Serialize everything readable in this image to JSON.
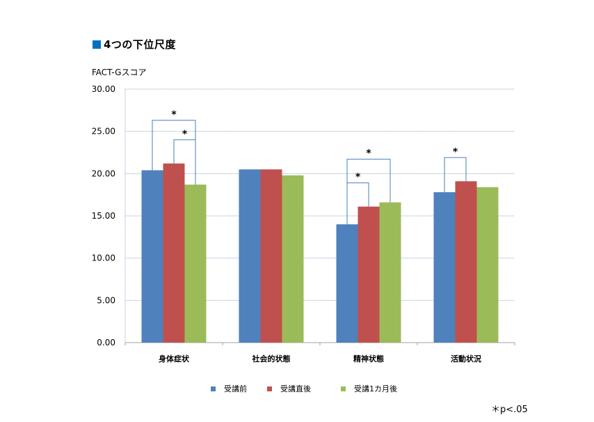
{
  "chart_data": {
    "type": "bar",
    "title": "4つの下位尺度",
    "ylabel": "FACT-Gスコア",
    "xlabel": "",
    "ylim": [
      0,
      30
    ],
    "y_ticks": [
      "0.00",
      "5.00",
      "10.00",
      "15.00",
      "20.00",
      "25.00",
      "30.00"
    ],
    "y_tick_values": [
      0,
      5,
      10,
      15,
      20,
      25,
      30
    ],
    "categories": [
      "身体症状",
      "社会的状態",
      "精神状態",
      "活動状況"
    ],
    "series": [
      {
        "name": "受講前",
        "color": "#4F81BD",
        "values": [
          20.4,
          20.5,
          14.0,
          17.8
        ]
      },
      {
        "name": "受講直後",
        "color": "#C0504D",
        "values": [
          21.2,
          20.5,
          16.1,
          19.1
        ]
      },
      {
        "name": "受講1カ月後",
        "color": "#9BBB59",
        "values": [
          18.7,
          19.8,
          16.6,
          18.4
        ]
      }
    ],
    "grid": true,
    "legend_position": "bottom",
    "significance": [
      {
        "category": 0,
        "from": 0,
        "to": 2,
        "label": "*"
      },
      {
        "category": 0,
        "from": 1,
        "to": 2,
        "label": "*"
      },
      {
        "category": 2,
        "from": 0,
        "to": 1,
        "label": "*"
      },
      {
        "category": 2,
        "from": 0,
        "to": 2,
        "label": "*"
      },
      {
        "category": 3,
        "from": 0,
        "to": 1,
        "label": "*"
      }
    ],
    "footnote": "＊p<.05"
  },
  "accent_color": "#0070C0",
  "grid_color": "#8EA9C8",
  "axis_color": "#A0A0A0",
  "bracket_color": "#4A7EBB"
}
